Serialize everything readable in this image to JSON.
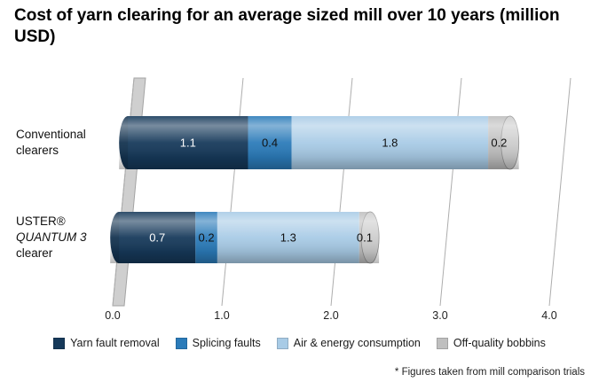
{
  "chart_data": {
    "type": "bar",
    "orientation": "horizontal",
    "stacked": true,
    "effect_3d": true,
    "title": "Cost of yarn clearing for an average sized mill over 10 years (million USD)",
    "categories": [
      "Conventional clearers",
      "USTER® QUANTUM 3 clearer"
    ],
    "category_lines": [
      [
        "Conventional",
        "clearers"
      ],
      [
        "USTER®",
        "QUANTUM 3",
        "clearer"
      ]
    ],
    "series": [
      {
        "name": "Yarn fault removal",
        "color": "#16395a",
        "values": [
          1.1,
          0.7
        ]
      },
      {
        "name": "Splicing faults",
        "color": "#2b7bb9",
        "values": [
          0.4,
          0.2
        ]
      },
      {
        "name": "Air & energy consumption",
        "color": "#a8cbe6",
        "values": [
          1.8,
          1.3
        ]
      },
      {
        "name": "Off-quality bobbins",
        "color": "#bfbfbf",
        "values": [
          0.2,
          0.1
        ]
      }
    ],
    "totals": [
      3.5,
      2.3
    ],
    "xlabel": "",
    "ylabel": "",
    "xlim": [
      0,
      4
    ],
    "xticks": [
      "0.0",
      "1.0",
      "2.0",
      "3.0",
      "4.0"
    ],
    "grid": true,
    "legend_position": "bottom",
    "value_labels": true,
    "footnote": "* Figures taken from mill comparison trials",
    "colors": {
      "gridline": "#adadad",
      "wall_fill": "#cfcfcf",
      "wall_stroke": "#a3a3a3",
      "label_on_dark": "#ffffff",
      "label_on_light": "#111111"
    }
  }
}
